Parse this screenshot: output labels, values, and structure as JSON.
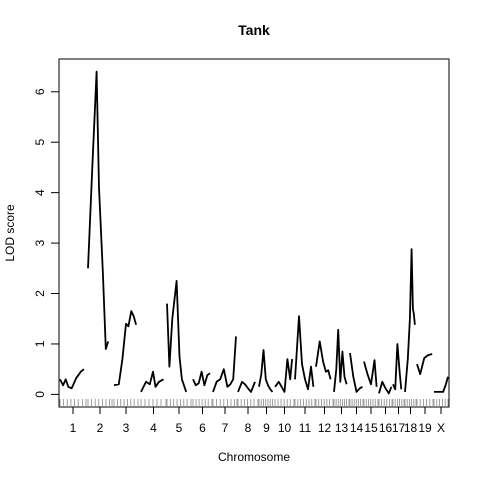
{
  "chart_data": {
    "type": "line",
    "title": "Tank",
    "xlabel": "Chromosome",
    "ylabel": "LOD score",
    "ylim": [
      -0.25,
      6.65
    ],
    "yticks": [
      0,
      1,
      2,
      3,
      4,
      5,
      6
    ],
    "grid": false,
    "legend": "none",
    "line_color": "#000000",
    "chromosomes": [
      {
        "label": "1",
        "markers": [
          0,
          0.14,
          0.28,
          0.42,
          0.56,
          0.7,
          0.86,
          1.0
        ],
        "x": [
          0,
          0.12,
          0.22,
          0.32,
          0.45,
          0.62,
          0.8,
          0.92
        ],
        "y": [
          0.3,
          0.18,
          0.3,
          0.15,
          0.12,
          0.32,
          0.45,
          0.5
        ]
      },
      {
        "label": "2",
        "markers": [
          0,
          0.15,
          0.3,
          0.45,
          0.6,
          0.75,
          0.9,
          1.0
        ],
        "x": [
          0,
          0.18,
          0.36,
          0.46,
          0.62,
          0.74,
          0.84
        ],
        "y": [
          2.5,
          4.5,
          6.4,
          4.1,
          2.4,
          0.9,
          1.05
        ]
      },
      {
        "label": "3",
        "markers": [
          0,
          0.14,
          0.28,
          0.42,
          0.56,
          0.7,
          0.84,
          1.0
        ],
        "x": [
          0,
          0.2,
          0.35,
          0.5,
          0.6,
          0.72,
          0.82,
          0.92
        ],
        "y": [
          0.18,
          0.2,
          0.7,
          1.4,
          1.35,
          1.65,
          1.55,
          1.38
        ]
      },
      {
        "label": "4",
        "markers": [
          0,
          0.16,
          0.32,
          0.48,
          0.64,
          0.8,
          1.0
        ],
        "x": [
          0,
          0.2,
          0.35,
          0.48,
          0.58,
          0.72,
          0.9
        ],
        "y": [
          0.05,
          0.25,
          0.2,
          0.45,
          0.15,
          0.25,
          0.3
        ]
      },
      {
        "label": "5",
        "markers": [
          0,
          0.14,
          0.28,
          0.42,
          0.56,
          0.7,
          0.84,
          1.0
        ],
        "x": [
          0,
          0.1,
          0.22,
          0.4,
          0.52,
          0.62,
          0.8
        ],
        "y": [
          1.8,
          0.55,
          1.5,
          2.25,
          0.75,
          0.3,
          0.05
        ]
      },
      {
        "label": "6",
        "markers": [
          0,
          0.16,
          0.32,
          0.48,
          0.64,
          0.8,
          1.0
        ],
        "x": [
          0,
          0.15,
          0.3,
          0.45,
          0.6,
          0.75,
          0.9
        ],
        "y": [
          0.3,
          0.18,
          0.22,
          0.45,
          0.18,
          0.38,
          0.42
        ]
      },
      {
        "label": "7",
        "markers": [
          0,
          0.15,
          0.3,
          0.45,
          0.6,
          0.75,
          0.9,
          1.0
        ],
        "x": [
          0,
          0.15,
          0.3,
          0.45,
          0.6,
          0.72,
          0.84,
          0.96
        ],
        "y": [
          0.05,
          0.25,
          0.3,
          0.5,
          0.15,
          0.2,
          0.3,
          1.15
        ]
      },
      {
        "label": "8",
        "markers": [
          0,
          0.16,
          0.32,
          0.48,
          0.64,
          0.8,
          1.0
        ],
        "x": [
          0,
          0.2,
          0.35,
          0.5,
          0.65,
          0.85
        ],
        "y": [
          0.05,
          0.25,
          0.2,
          0.12,
          0.05,
          0.25
        ]
      },
      {
        "label": "9",
        "markers": [
          0,
          0.15,
          0.3,
          0.45,
          0.6,
          0.75,
          0.9
        ],
        "x": [
          0,
          0.15,
          0.3,
          0.45,
          0.6,
          0.75,
          0.9
        ],
        "y": [
          0.15,
          0.4,
          0.88,
          0.3,
          0.18,
          0.1,
          0.05
        ]
      },
      {
        "label": "10",
        "markers": [
          0,
          0.16,
          0.32,
          0.48,
          0.64,
          0.8,
          1.0
        ],
        "x": [
          0,
          0.2,
          0.35,
          0.5,
          0.65,
          0.8,
          0.9
        ],
        "y": [
          0.15,
          0.25,
          0.15,
          0.05,
          0.7,
          0.3,
          0.7
        ]
      },
      {
        "label": "11",
        "markers": [
          0,
          0.14,
          0.28,
          0.42,
          0.56,
          0.7,
          0.84,
          1.0
        ],
        "x": [
          0,
          0.2,
          0.35,
          0.5,
          0.65,
          0.8,
          0.92
        ],
        "y": [
          0.3,
          1.55,
          0.6,
          0.3,
          0.1,
          0.55,
          0.15
        ]
      },
      {
        "label": "12",
        "markers": [
          0,
          0.16,
          0.32,
          0.48,
          0.64,
          0.8,
          1.0
        ],
        "x": [
          0,
          0.22,
          0.42,
          0.58,
          0.72,
          0.86
        ],
        "y": [
          0.55,
          1.05,
          0.65,
          0.45,
          0.48,
          0.3
        ]
      },
      {
        "label": "13",
        "markers": [
          0,
          0.14,
          0.28,
          0.42,
          0.56,
          0.7,
          0.84,
          1.0
        ],
        "x": [
          0,
          0.15,
          0.28,
          0.42,
          0.56,
          0.7,
          0.84
        ],
        "y": [
          0.05,
          0.5,
          1.28,
          0.25,
          0.85,
          0.35,
          0.2
        ]
      },
      {
        "label": "14",
        "markers": [
          0,
          0.16,
          0.32,
          0.48,
          0.64,
          0.8,
          1.0
        ],
        "x": [
          0,
          0.25,
          0.5,
          0.75,
          0.95
        ],
        "y": [
          0.82,
          0.35,
          0.05,
          0.12,
          0.15
        ]
      },
      {
        "label": "15",
        "markers": [
          0,
          0.16,
          0.32,
          0.48,
          0.64,
          0.8,
          1.0
        ],
        "x": [
          0,
          0.25,
          0.5,
          0.75,
          0.9
        ],
        "y": [
          0.65,
          0.4,
          0.2,
          0.68,
          0.15
        ]
      },
      {
        "label": "16",
        "markers": [
          0,
          0.2,
          0.4,
          0.6,
          0.8,
          1.0
        ],
        "x": [
          0,
          0.25,
          0.5,
          0.75,
          0.95
        ],
        "y": [
          0.02,
          0.25,
          0.12,
          0.02,
          0.15
        ]
      },
      {
        "label": "17",
        "markers": [
          0,
          0.2,
          0.4,
          0.6,
          0.8,
          1.0
        ],
        "x": [
          0,
          0.2,
          0.4,
          0.6,
          0.75
        ],
        "y": [
          0.2,
          0.1,
          1.0,
          0.45,
          0.1
        ]
      },
      {
        "label": "18",
        "markers": [
          0,
          0.2,
          0.4,
          0.6,
          0.8,
          1.0
        ],
        "x": [
          0,
          0.25,
          0.45,
          0.6,
          0.72,
          0.8,
          0.9
        ],
        "y": [
          0.05,
          0.7,
          1.5,
          2.88,
          1.7,
          1.6,
          1.38
        ]
      },
      {
        "label": "19",
        "markers": [
          0,
          0.2,
          0.4,
          0.6,
          0.8,
          1.0
        ],
        "x": [
          0,
          0.2,
          0.45,
          0.7,
          0.95
        ],
        "y": [
          0.6,
          0.4,
          0.72,
          0.78,
          0.8
        ]
      },
      {
        "label": "X",
        "markers": [
          0,
          0.2,
          0.4,
          0.6,
          0.8,
          1.0
        ],
        "x": [
          0,
          0.4,
          0.65,
          0.85,
          1.0
        ],
        "y": [
          0.05,
          0.05,
          0.05,
          0.2,
          0.35
        ]
      }
    ]
  }
}
